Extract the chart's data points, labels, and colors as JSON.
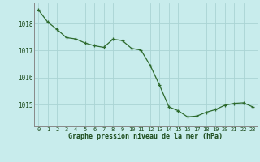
{
  "x": [
    0,
    1,
    2,
    3,
    4,
    5,
    6,
    7,
    8,
    9,
    10,
    11,
    12,
    13,
    14,
    15,
    16,
    17,
    18,
    19,
    20,
    21,
    22,
    23
  ],
  "y": [
    1018.5,
    1018.05,
    1017.78,
    1017.48,
    1017.43,
    1017.28,
    1017.18,
    1017.12,
    1017.42,
    1017.37,
    1017.08,
    1017.02,
    1016.45,
    1015.72,
    1014.92,
    1014.78,
    1014.55,
    1014.58,
    1014.72,
    1014.82,
    1014.98,
    1015.05,
    1015.07,
    1014.92
  ],
  "line_color": "#2d6a2d",
  "marker_color": "#2d6a2d",
  "bg_color": "#c8ecec",
  "grid_color": "#aad4d4",
  "xlabel": "Graphe pression niveau de la mer (hPa)",
  "xlabel_color": "#1a4a1a",
  "tick_color": "#1a4a1a",
  "ylim": [
    1014.2,
    1018.75
  ],
  "yticks": [
    1015,
    1016,
    1017,
    1018
  ],
  "xticks": [
    0,
    1,
    2,
    3,
    4,
    5,
    6,
    7,
    8,
    9,
    10,
    11,
    12,
    13,
    14,
    15,
    16,
    17,
    18,
    19,
    20,
    21,
    22,
    23
  ],
  "figsize": [
    3.2,
    2.0
  ],
  "dpi": 100
}
